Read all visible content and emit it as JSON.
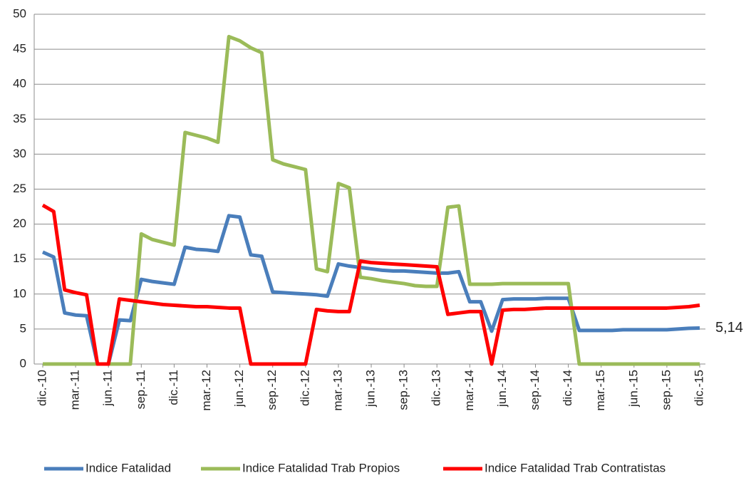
{
  "chart_data": {
    "type": "line",
    "categories": [
      "dic.-10",
      null,
      null,
      "mar.-11",
      null,
      null,
      "jun.-11",
      null,
      null,
      "sep.-11",
      null,
      null,
      "dic.-11",
      null,
      null,
      "mar.-12",
      null,
      null,
      "jun.-12",
      null,
      null,
      "sep.-12",
      null,
      null,
      "dic.-12",
      null,
      null,
      "mar.-13",
      null,
      null,
      "jun.-13",
      null,
      null,
      "sep.-13",
      null,
      null,
      "dic.-13",
      null,
      null,
      "mar.-14",
      null,
      null,
      "jun.-14",
      null,
      null,
      "sep.-14",
      null,
      null,
      "dic.-14",
      null,
      null,
      "mar.-15",
      null,
      null,
      "jun.-15",
      null,
      null,
      "sep.-15",
      null,
      null,
      "dic.-15"
    ],
    "series": [
      {
        "name": "Indice Fatalidad",
        "color": "#4a7ebb",
        "values": [
          16,
          15.3,
          7.3,
          7.0,
          6.9,
          0,
          0,
          6.3,
          6.2,
          12.1,
          11.8,
          11.6,
          11.4,
          16.7,
          16.4,
          16.3,
          16.1,
          21.2,
          21.0,
          15.6,
          15.4,
          10.3,
          10.2,
          10.1,
          10.0,
          9.9,
          9.7,
          14.3,
          14.0,
          13.8,
          13.6,
          13.4,
          13.3,
          13.3,
          13.2,
          13.1,
          13.0,
          13.0,
          13.2,
          8.9,
          8.9,
          4.7,
          9.2,
          9.3,
          9.3,
          9.3,
          9.4,
          9.4,
          9.4,
          4.8,
          4.8,
          4.8,
          4.8,
          4.9,
          4.9,
          4.9,
          4.9,
          4.9,
          5.0,
          5.1,
          5.14
        ]
      },
      {
        "name": "Indice Fatalidad Trab Propios",
        "color": "#9bbb59",
        "values": [
          0,
          0,
          0,
          0,
          0,
          0,
          0,
          0,
          0,
          18.6,
          17.8,
          17.4,
          17.0,
          33.1,
          32.7,
          32.3,
          31.7,
          46.8,
          46.2,
          45.2,
          44.5,
          29.2,
          28.6,
          28.2,
          27.8,
          13.6,
          13.2,
          25.8,
          25.2,
          12.4,
          12.2,
          11.9,
          11.7,
          11.5,
          11.2,
          11.1,
          11.1,
          22.4,
          22.6,
          11.4,
          11.4,
          11.4,
          11.5,
          11.5,
          11.5,
          11.5,
          11.5,
          11.5,
          11.5,
          0,
          0,
          0,
          0,
          0,
          0,
          0,
          0,
          0,
          0,
          0,
          0
        ]
      },
      {
        "name": "Indice Fatalidad Trab Contratistas",
        "color": "#ff0000",
        "values": [
          22.7,
          21.8,
          10.6,
          10.2,
          9.9,
          0,
          0,
          9.3,
          9.1,
          8.9,
          8.7,
          8.5,
          8.4,
          8.3,
          8.2,
          8.2,
          8.1,
          8.0,
          8.0,
          0,
          0,
          0,
          0,
          0,
          0,
          7.8,
          7.6,
          7.5,
          7.5,
          14.7,
          14.5,
          14.4,
          14.3,
          14.2,
          14.1,
          14.0,
          13.9,
          7.1,
          7.3,
          7.5,
          7.5,
          0,
          7.7,
          7.8,
          7.8,
          7.9,
          8.0,
          8.0,
          8.0,
          8.0,
          8.0,
          8.0,
          8.0,
          8.0,
          8.0,
          8.0,
          8.0,
          8.0,
          8.1,
          8.2,
          8.4
        ]
      }
    ],
    "annotations": [
      {
        "text": "5,14",
        "series": 0,
        "index": 60
      }
    ],
    "ylim": [
      0,
      50
    ],
    "yticks": [
      0,
      5,
      10,
      15,
      20,
      25,
      30,
      35,
      40,
      45,
      50
    ],
    "grid": true,
    "legend": "bottom"
  }
}
